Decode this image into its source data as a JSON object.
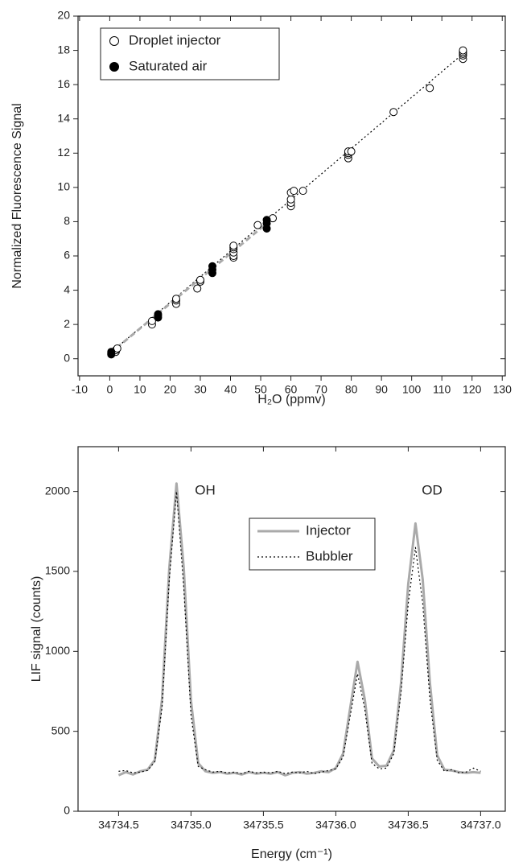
{
  "chart_data": [
    {
      "type": "scatter",
      "xlabel": "H₂O (ppmv)",
      "ylabel": "Normalized Fluorescence Signal",
      "xlim": [
        -10.5,
        131
      ],
      "ylim": [
        -1,
        20
      ],
      "xticks": [
        -10,
        0,
        10,
        20,
        30,
        40,
        50,
        60,
        70,
        80,
        90,
        100,
        110,
        120,
        130
      ],
      "yticks": [
        0,
        2,
        4,
        6,
        8,
        10,
        12,
        14,
        16,
        18,
        20
      ],
      "legend": "upper left",
      "series": [
        {
          "name": "Droplet injector",
          "color": "#000000",
          "filled": false,
          "x": [
            2,
            2,
            2.5,
            14,
            14,
            22,
            22,
            22,
            29,
            30,
            30,
            41,
            41,
            41,
            41,
            41,
            41,
            49,
            54,
            60,
            60,
            60,
            60,
            61,
            64,
            79,
            79,
            79,
            79,
            80,
            94,
            106,
            117,
            117,
            117,
            117,
            117
          ],
          "values": [
            0.4,
            0.5,
            0.6,
            2.0,
            2.2,
            3.2,
            3.4,
            3.5,
            4.1,
            4.5,
            4.6,
            5.9,
            6.0,
            6.2,
            6.4,
            6.5,
            6.6,
            7.8,
            8.2,
            8.9,
            9.1,
            9.3,
            9.7,
            9.8,
            9.8,
            11.7,
            11.9,
            12.0,
            12.1,
            12.1,
            14.4,
            15.8,
            17.5,
            17.7,
            17.8,
            17.9,
            18.0
          ]
        },
        {
          "name": "Saturated air",
          "color": "#000000",
          "filled": true,
          "x": [
            0.5,
            0.5,
            0.5,
            16,
            16,
            16,
            34,
            34,
            34,
            52,
            52,
            52
          ],
          "values": [
            0.25,
            0.3,
            0.4,
            2.4,
            2.5,
            2.6,
            5.0,
            5.2,
            5.4,
            7.6,
            7.9,
            8.1
          ]
        }
      ],
      "lines": [
        {
          "x": [
            0,
            117
          ],
          "values": [
            0.3,
            17.8
          ],
          "color": "#000000",
          "style": "dotted"
        },
        {
          "x": [
            0,
            52
          ],
          "values": [
            0.3,
            7.9
          ],
          "color": "#aaaaaa",
          "style": "dashed"
        }
      ]
    },
    {
      "type": "line",
      "xlabel": "Energy (cm⁻¹)",
      "ylabel": "LIF signal (counts)",
      "annotations": [
        "OH",
        "OD"
      ],
      "xlim": [
        34734.22,
        34737.17
      ],
      "ylim": [
        0,
        2280
      ],
      "xticks": [
        34734.5,
        {
          "value": 34735,
          "label": "34735.0"
        },
        34735.5,
        {
          "value": 34736,
          "label": "34736.0"
        },
        34736.5,
        {
          "value": 34737,
          "label": "34737.0"
        }
      ],
      "yticks": [
        0,
        500,
        1000,
        1500,
        2000
      ],
      "legend": "center",
      "x": [
        34734.5,
        34734.55,
        34734.6,
        34734.65,
        34734.7,
        34734.75,
        34734.8,
        34734.85,
        34734.9,
        34734.95,
        34735,
        34735.05,
        34735.1,
        34735.15,
        34735.2,
        34735.25,
        34735.3,
        34735.35,
        34735.4,
        34735.45,
        34735.5,
        34735.55,
        34735.6,
        34735.65,
        34735.7,
        34735.75,
        34735.8,
        34735.85,
        34735.9,
        34735.95,
        34736,
        34736.05,
        34736.1,
        34736.15,
        34736.2,
        34736.25,
        34736.3,
        34736.35,
        34736.4,
        34736.45,
        34736.5,
        34736.55,
        34736.6,
        34736.65,
        34736.7,
        34736.75,
        34736.8,
        34736.85,
        34736.9,
        34736.95,
        34737
      ],
      "series": [
        {
          "name": "Injector",
          "color": "#aaaaaa",
          "style": "solid",
          "values": [
            225,
            245,
            230,
            250,
            260,
            320,
            700,
            1520,
            2050,
            1520,
            690,
            300,
            250,
            240,
            245,
            235,
            240,
            230,
            245,
            235,
            240,
            235,
            245,
            225,
            240,
            245,
            235,
            240,
            250,
            245,
            270,
            360,
            650,
            935,
            700,
            330,
            280,
            285,
            380,
            800,
            1420,
            1800,
            1450,
            800,
            350,
            260,
            255,
            245,
            240,
            245,
            240
          ]
        },
        {
          "name": "Bubbler",
          "color": "#000000",
          "style": "dotted",
          "values": [
            250,
            255,
            240,
            245,
            255,
            310,
            650,
            1450,
            2000,
            1400,
            600,
            280,
            260,
            245,
            250,
            240,
            245,
            235,
            250,
            240,
            245,
            240,
            250,
            235,
            245,
            240,
            250,
            235,
            245,
            255,
            265,
            340,
            600,
            860,
            640,
            300,
            265,
            270,
            360,
            740,
            1300,
            1650,
            1300,
            700,
            320,
            250,
            260,
            240,
            245,
            270,
            250
          ]
        }
      ]
    }
  ]
}
